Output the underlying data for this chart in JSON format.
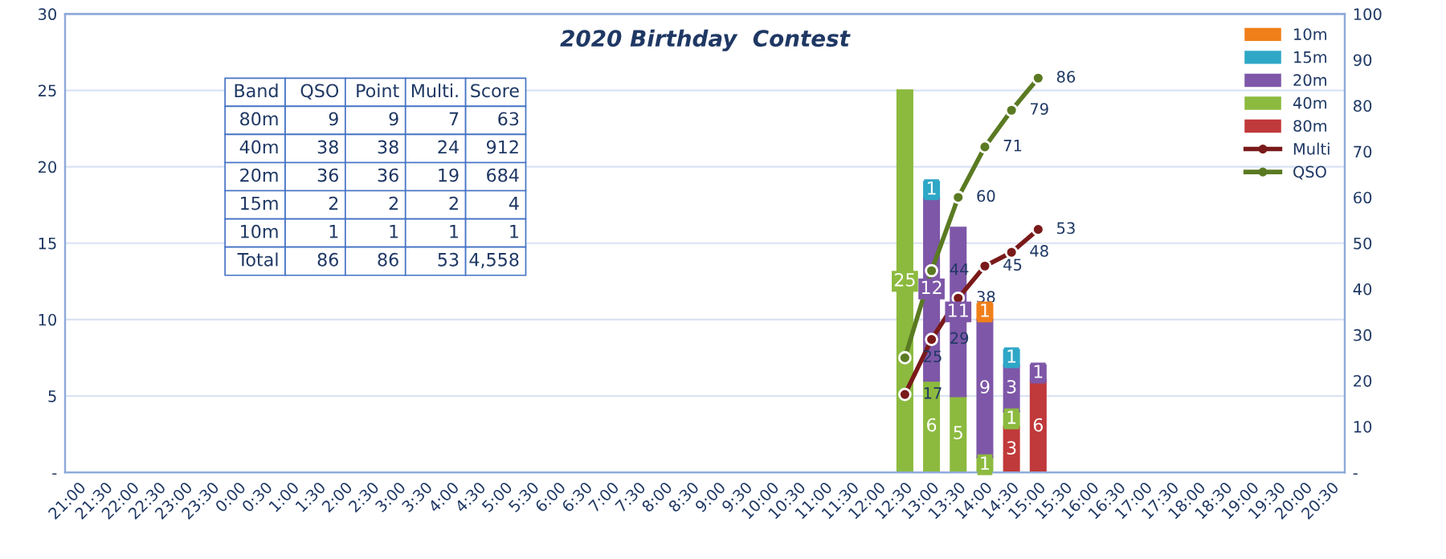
{
  "chart_data": {
    "type": "bar",
    "title": "2020 Birthday  Contest",
    "stacked": true,
    "categories": [
      "21:00",
      "21:30",
      "22:00",
      "22:30",
      "23:00",
      "23:30",
      "0:00",
      "0:30",
      "1:00",
      "1:30",
      "2:00",
      "2:30",
      "3:00",
      "3:30",
      "4:00",
      "4:30",
      "5:00",
      "5:30",
      "6:00",
      "6:30",
      "7:00",
      "7:30",
      "8:00",
      "8:30",
      "9:00",
      "9:30",
      "10:00",
      "10:30",
      "11:00",
      "11:30",
      "12:00",
      "12:30",
      "13:00",
      "13:30",
      "14:00",
      "14:30",
      "15:00",
      "15:30",
      "16:00",
      "16:30",
      "17:00",
      "17:30",
      "18:00",
      "18:30",
      "19:00",
      "19:30",
      "20:00",
      "20:30"
    ],
    "series": [
      {
        "name": "80m",
        "color": "#c0393b",
        "values": [
          null,
          null,
          null,
          null,
          null,
          null,
          null,
          null,
          null,
          null,
          null,
          null,
          null,
          null,
          null,
          null,
          null,
          null,
          null,
          null,
          null,
          null,
          null,
          null,
          null,
          null,
          null,
          null,
          null,
          null,
          null,
          null,
          null,
          null,
          null,
          3,
          6,
          null,
          null,
          null,
          null,
          null,
          null,
          null,
          null,
          null,
          null,
          null
        ]
      },
      {
        "name": "40m",
        "color": "#8cba3f",
        "values": [
          null,
          null,
          null,
          null,
          null,
          null,
          null,
          null,
          null,
          null,
          null,
          null,
          null,
          null,
          null,
          null,
          null,
          null,
          null,
          null,
          null,
          null,
          null,
          null,
          null,
          null,
          null,
          null,
          null,
          null,
          null,
          25,
          6,
          5,
          1,
          1,
          null,
          null,
          null,
          null,
          null,
          null,
          null,
          null,
          null,
          null,
          null,
          null
        ]
      },
      {
        "name": "20m",
        "color": "#7e57a8",
        "values": [
          null,
          null,
          null,
          null,
          null,
          null,
          null,
          null,
          null,
          null,
          null,
          null,
          null,
          null,
          null,
          null,
          null,
          null,
          null,
          null,
          null,
          null,
          null,
          null,
          null,
          null,
          null,
          null,
          null,
          null,
          null,
          null,
          12,
          11,
          9,
          3,
          1,
          null,
          null,
          null,
          null,
          null,
          null,
          null,
          null,
          null,
          null,
          null
        ]
      },
      {
        "name": "15m",
        "color": "#2fa7c7",
        "values": [
          null,
          null,
          null,
          null,
          null,
          null,
          null,
          null,
          null,
          null,
          null,
          null,
          null,
          null,
          null,
          null,
          null,
          null,
          null,
          null,
          null,
          null,
          null,
          null,
          null,
          null,
          null,
          null,
          null,
          null,
          null,
          null,
          1,
          null,
          null,
          1,
          null,
          null,
          null,
          null,
          null,
          null,
          null,
          null,
          null,
          null,
          null,
          null
        ]
      },
      {
        "name": "10m",
        "color": "#f07f1a",
        "values": [
          null,
          null,
          null,
          null,
          null,
          null,
          null,
          null,
          null,
          null,
          null,
          null,
          null,
          null,
          null,
          null,
          null,
          null,
          null,
          null,
          null,
          null,
          null,
          null,
          null,
          null,
          null,
          null,
          null,
          null,
          null,
          null,
          null,
          null,
          1,
          null,
          null,
          null,
          null,
          null,
          null,
          null,
          null,
          null,
          null,
          null,
          null,
          null
        ]
      },
      {
        "name": "Multi",
        "type": "line",
        "axis": "y2",
        "color": "#7a1a1a",
        "values": [
          null,
          null,
          null,
          null,
          null,
          null,
          null,
          null,
          null,
          null,
          null,
          null,
          null,
          null,
          null,
          null,
          null,
          null,
          null,
          null,
          null,
          null,
          null,
          null,
          null,
          null,
          null,
          null,
          null,
          null,
          null,
          17,
          29,
          38,
          45,
          48,
          53,
          null,
          null,
          null,
          null,
          null,
          null,
          null,
          null,
          null,
          null,
          null
        ]
      },
      {
        "name": "QSO",
        "type": "line",
        "axis": "y2",
        "color": "#5a7a22",
        "values": [
          null,
          null,
          null,
          null,
          null,
          null,
          null,
          null,
          null,
          null,
          null,
          null,
          null,
          null,
          null,
          null,
          null,
          null,
          null,
          null,
          null,
          null,
          null,
          null,
          null,
          null,
          null,
          null,
          null,
          null,
          null,
          25,
          44,
          60,
          71,
          79,
          86,
          null,
          null,
          null,
          null,
          null,
          null,
          null,
          null,
          null,
          null,
          null
        ]
      }
    ],
    "ylim": [
      0,
      30
    ],
    "yticks": [
      {
        "value": 0,
        "label": "-"
      },
      5,
      10,
      15,
      20,
      25,
      30
    ],
    "y2lim": [
      0,
      100
    ],
    "y2ticks": [
      {
        "value": 0,
        "label": "-"
      },
      10,
      20,
      30,
      40,
      50,
      60,
      70,
      80,
      90,
      100
    ],
    "grid": "y",
    "legend": "top right",
    "marker": "circle",
    "line_style": "solid",
    "data_labels": true,
    "annotations": [
      "Band",
      "QSO",
      "Point",
      "Multi.",
      "Score",
      "80m",
      "9",
      "9",
      "7",
      "63",
      "40m",
      "38",
      "38",
      "24",
      "912",
      "20m",
      "36",
      "36",
      "19",
      "684",
      "15m",
      "2",
      "2",
      "2",
      "4",
      "10m",
      "1",
      "1",
      "1",
      "1",
      "Total",
      "86",
      "86",
      "53",
      "4,558"
    ]
  }
}
